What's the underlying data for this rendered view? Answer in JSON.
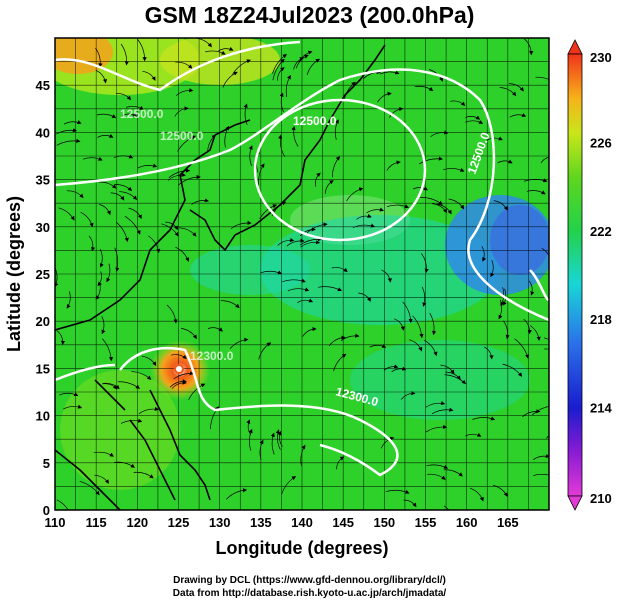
{
  "title": "GSM 18Z24Jul2023 (200.0hPa)",
  "axes": {
    "xlabel": "Longitude (degrees)",
    "ylabel": "Latitude  (degrees)",
    "xticks": [
      "110",
      "115",
      "120",
      "125",
      "130",
      "135",
      "140",
      "145",
      "150",
      "155",
      "160",
      "165"
    ],
    "yticks": [
      "0",
      "5",
      "10",
      "15",
      "20",
      "25",
      "30",
      "35",
      "40",
      "45"
    ],
    "xlim": [
      110,
      170
    ],
    "ylim": [
      0,
      50
    ]
  },
  "colorbar": {
    "ticks": [
      "210",
      "214",
      "218",
      "222",
      "226",
      "230"
    ],
    "min": 210,
    "max": 230
  },
  "contour_labels": [
    "12500.0",
    "12500.0",
    "12500.0",
    "12300.0",
    "12300.0",
    "12500.0"
  ],
  "credits": {
    "line1": "Drawing by DCL (https://www.gfd-dennou.org/library/dcl/)",
    "line2": "Data from http://database.rish.kyoto-u.ac.jp/arch/jmadata/"
  },
  "colors": {
    "field_green": "#2ed02a",
    "field_yellow": "#a6e41e",
    "field_orange": "#f5a21c",
    "field_cyan": "#1fd7b4",
    "field_blue": "#2f8be8",
    "contour": "#ffffff",
    "coast": "#000000"
  }
}
